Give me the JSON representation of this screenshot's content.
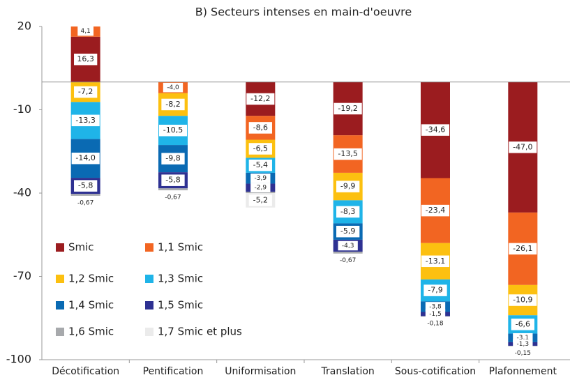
{
  "chart_data": {
    "type": "stacked_bar",
    "title": "B) Secteurs intenses en main-d'oeuvre",
    "categories": [
      "Décotification",
      "Pentification",
      "Uniformisation",
      "Translation",
      "Sous-cotification",
      "Plafonnement"
    ],
    "series": [
      {
        "name": "Smic",
        "color": "#9b1c1f",
        "values": [
          16.3,
          0,
          -12.2,
          -19.2,
          -34.6,
          -47.0
        ],
        "value_labels": [
          "16,3",
          null,
          "-12,2",
          "-19,2",
          "-34,6",
          "-47,0"
        ]
      },
      {
        "name": "1,1 Smic",
        "color": "#f26522",
        "values": [
          4.1,
          -4.0,
          -8.6,
          -13.5,
          -23.4,
          -26.1
        ],
        "value_labels": [
          "4,1",
          "-4,0",
          "-8,6",
          "-13,5",
          "-23,4",
          "-26,1"
        ]
      },
      {
        "name": "1,2 Smic",
        "color": "#fcc010",
        "values": [
          -7.2,
          -8.2,
          -6.5,
          -9.9,
          -13.1,
          -10.9
        ],
        "value_labels": [
          "-7,2",
          "-8,2",
          "-6,5",
          "-9,9",
          "-13,1",
          "-10,9"
        ]
      },
      {
        "name": "1,3 Smic",
        "color": "#1fb4e8",
        "values": [
          -13.3,
          -10.5,
          -5.4,
          -8.3,
          -7.9,
          -6.6
        ],
        "value_labels": [
          "-13,3",
          "-10,5",
          "-5,4",
          "-8,3",
          "-7,9",
          "-6,6"
        ]
      },
      {
        "name": "1,4 Smic",
        "color": "#0a6ab3",
        "values": [
          -14.0,
          -9.8,
          -3.9,
          -5.9,
          -3.8,
          -3.1
        ],
        "value_labels": [
          "-14,0",
          "-9,8",
          "-3,9",
          "-5,9",
          "-3,8",
          "-3,1"
        ]
      },
      {
        "name": "1,5 Smic",
        "color": "#2e3192",
        "values": [
          -5.8,
          -5.8,
          -2.9,
          -4.3,
          -1.5,
          -1.3
        ],
        "value_labels": [
          "-5,8",
          "-5,8",
          "-2,9",
          "-4,3",
          "-1,5",
          "-1,3"
        ]
      },
      {
        "name": "1,6 Smic",
        "color": "#a7a9ac",
        "values": [
          -0.67,
          -0.67,
          -0.5,
          -0.67,
          -0.18,
          -0.15
        ],
        "value_labels": [
          "-0,67",
          "-0,67",
          null,
          "-0,67",
          "-0,18",
          "-0,15"
        ]
      },
      {
        "name": "1,7 Smic et plus",
        "color": "#ebebeb",
        "values": [
          0,
          0,
          -5.2,
          0,
          0,
          0
        ],
        "value_labels": [
          null,
          null,
          "-5,2",
          null,
          null,
          null
        ]
      }
    ],
    "ylim": [
      -100,
      20
    ],
    "yticks": [
      20,
      -10,
      -40,
      -70,
      -100
    ]
  }
}
